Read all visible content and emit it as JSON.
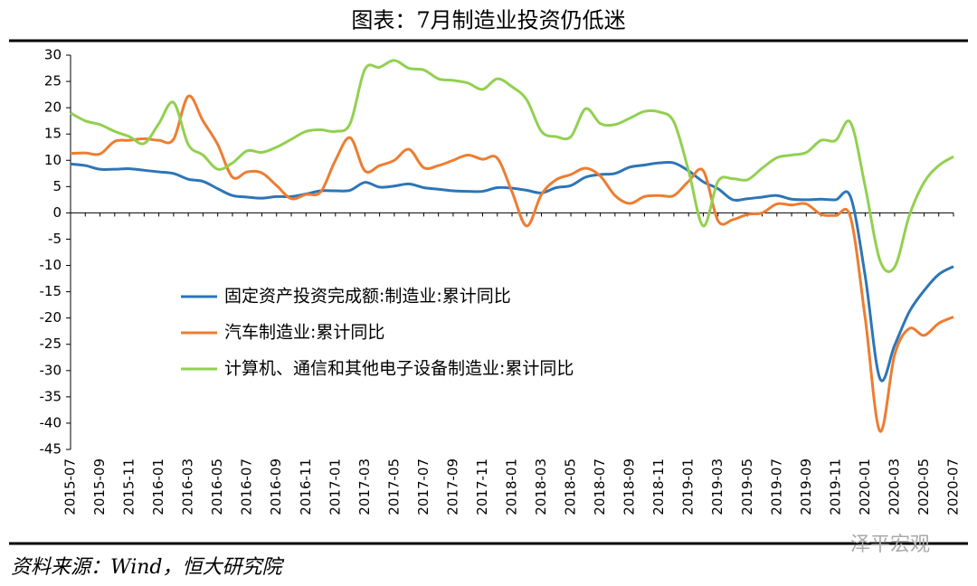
{
  "title": "图表：7月制造业投资仍低迷",
  "source": "资料来源：Wind，恒大研究院",
  "watermark": "泽平宏观",
  "chart_data": {
    "type": "line",
    "categories": [
      "2015-07",
      null,
      "2015-09",
      null,
      "2015-11",
      null,
      "2016-01",
      null,
      "2016-03",
      null,
      "2016-05",
      null,
      "2016-07",
      null,
      "2016-09",
      null,
      "2016-11",
      null,
      "2017-01",
      null,
      "2017-03",
      null,
      "2017-05",
      null,
      "2017-07",
      null,
      "2017-09",
      null,
      "2017-11",
      null,
      "2018-01",
      null,
      "2018-03",
      null,
      "2018-05",
      null,
      "2018-07",
      null,
      "2018-09",
      null,
      "2018-11",
      null,
      "2019-01",
      null,
      "2019-03",
      null,
      "2019-05",
      null,
      "2019-07",
      null,
      "2019-09",
      null,
      "2019-11",
      null,
      "2020-01",
      null,
      "2020-03",
      null,
      "2020-05",
      null,
      "2020-07"
    ],
    "series": [
      {
        "name": "固定资产投资完成额:制造业:累计同比",
        "color": "#2e75b6",
        "values": [
          9.3,
          9.0,
          8.3,
          8.3,
          8.4,
          8.1,
          7.8,
          7.5,
          6.4,
          6.0,
          4.6,
          3.3,
          3.0,
          2.8,
          3.1,
          3.1,
          3.6,
          4.2,
          4.2,
          4.3,
          5.8,
          4.9,
          5.1,
          5.5,
          4.8,
          4.5,
          4.2,
          4.1,
          4.1,
          4.8,
          4.7,
          4.3,
          3.8,
          4.8,
          5.2,
          6.8,
          7.3,
          7.5,
          8.7,
          9.1,
          9.5,
          9.5,
          8.0,
          5.9,
          4.6,
          2.5,
          2.7,
          3.0,
          3.3,
          2.6,
          2.5,
          2.6,
          2.5,
          3.1,
          -12,
          -31.5,
          -25.2,
          -18.8,
          -14.8,
          -11.7,
          -10.2
        ]
      },
      {
        "name": "汽车制造业:累计同比",
        "color": "#ed7d31",
        "values": [
          11.3,
          11.4,
          11.2,
          13.6,
          13.8,
          14.1,
          13.8,
          14.0,
          22.2,
          17.5,
          13.0,
          6.8,
          7.8,
          7.6,
          5.2,
          2.7,
          3.5,
          4.0,
          10.0,
          14.3,
          8.0,
          9.0,
          10.0,
          12.1,
          8.6,
          9.0,
          10.0,
          11.0,
          10.2,
          10.4,
          4.0,
          -2.5,
          3.5,
          6.3,
          7.3,
          8.5,
          7.0,
          3.3,
          1.8,
          3.1,
          3.3,
          3.3,
          6.0,
          8.0,
          -1.5,
          -1.3,
          -0.3,
          0,
          1.7,
          1.5,
          1.7,
          -0.3,
          -0.5,
          -0.8,
          -20,
          -41.5,
          -27,
          -22,
          -23.3,
          -21,
          -19.8
        ]
      },
      {
        "name": "计算机、通信和其他电子设备制造业:累计同比",
        "color": "#92d050",
        "values": [
          19,
          17.5,
          16.8,
          15.5,
          14.5,
          13.2,
          17,
          21,
          13,
          11,
          8.3,
          9.5,
          11.8,
          11.5,
          12.5,
          14,
          15.5,
          15.8,
          15.5,
          17,
          27.3,
          27.7,
          29,
          27.5,
          27.2,
          25.5,
          25.2,
          24.7,
          23.5,
          25.5,
          24,
          21.5,
          15.5,
          14.5,
          14.5,
          19.8,
          17,
          16.8,
          18,
          19.3,
          19.2,
          17.3,
          8,
          -2.5,
          6,
          6.5,
          6.3,
          8.5,
          10.5,
          11,
          11.5,
          13.8,
          13.8,
          17.2,
          5,
          -9,
          -10.3,
          -0.5,
          5.8,
          9,
          10.7
        ]
      }
    ],
    "ylim": [
      -45,
      30
    ],
    "yticks": [
      30,
      25,
      20,
      15,
      10,
      5,
      0,
      -5,
      -10,
      -15,
      -20,
      -25,
      -30,
      -35,
      -40,
      -45
    ]
  }
}
